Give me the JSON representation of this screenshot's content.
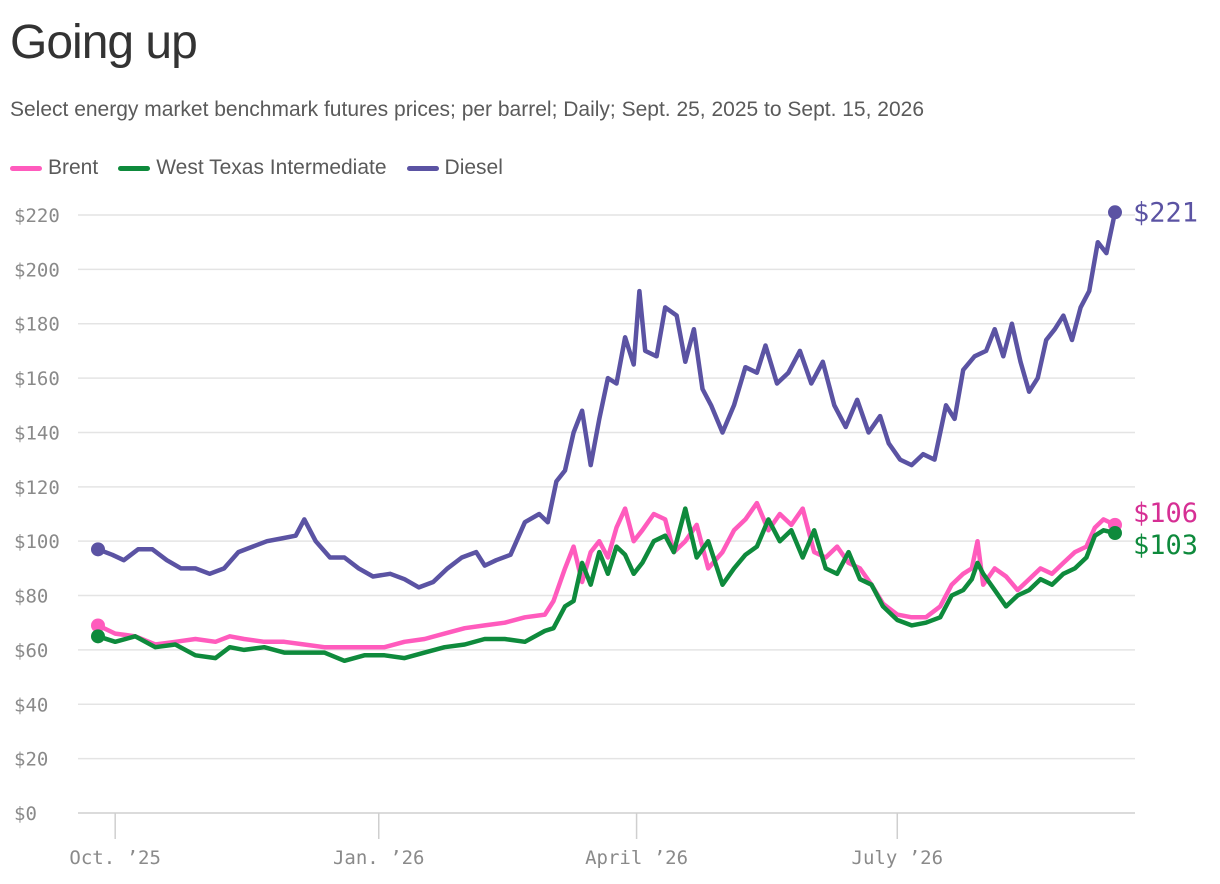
{
  "header": {
    "title": "Going up",
    "subtitle": "Select energy market benchmark futures prices; per barrel; Daily; Sept. 25, 2025 to Sept. 15, 2026"
  },
  "chart_data": {
    "type": "line",
    "title": "Going up",
    "subtitle": "Select energy market benchmark futures prices; per barrel; Daily; Sept. 25, 2025 to Sept. 15, 2026",
    "x_range": [
      "2025-09-25",
      "2026-09-15"
    ],
    "ylim": [
      0,
      220
    ],
    "y_ticks": [
      0,
      20,
      40,
      60,
      80,
      100,
      120,
      140,
      160,
      180,
      200,
      220
    ],
    "y_tick_labels": [
      "$0",
      "$20",
      "$40",
      "$60",
      "$80",
      "$100",
      "$120",
      "$140",
      "$160",
      "$180",
      "$200",
      "$220"
    ],
    "x_ticks": [
      {
        "date": "2025-10-01",
        "label": "Oct. ’25"
      },
      {
        "date": "2026-01-01",
        "label": "Jan. ’26"
      },
      {
        "date": "2026-04-01",
        "label": "April ’26"
      },
      {
        "date": "2026-07-01",
        "label": "July ’26"
      }
    ],
    "grid": true,
    "legend": "top-left",
    "series": [
      {
        "name": "Brent",
        "color": "#ff5bbd",
        "label_color": "#d62f94",
        "end_label": "$106",
        "points": [
          [
            "2025-09-25",
            69
          ],
          [
            "2025-10-01",
            66
          ],
          [
            "2025-10-08",
            65
          ],
          [
            "2025-10-15",
            62
          ],
          [
            "2025-10-22",
            63
          ],
          [
            "2025-10-29",
            64
          ],
          [
            "2025-11-05",
            63
          ],
          [
            "2025-11-10",
            65
          ],
          [
            "2025-11-15",
            64
          ],
          [
            "2025-11-22",
            63
          ],
          [
            "2025-11-29",
            63
          ],
          [
            "2025-12-06",
            62
          ],
          [
            "2025-12-13",
            61
          ],
          [
            "2025-12-20",
            61
          ],
          [
            "2025-12-27",
            61
          ],
          [
            "2026-01-03",
            61
          ],
          [
            "2026-01-10",
            63
          ],
          [
            "2026-01-17",
            64
          ],
          [
            "2026-01-24",
            66
          ],
          [
            "2026-01-31",
            68
          ],
          [
            "2026-02-07",
            69
          ],
          [
            "2026-02-14",
            70
          ],
          [
            "2026-02-21",
            72
          ],
          [
            "2026-02-28",
            73
          ],
          [
            "2026-03-03",
            78
          ],
          [
            "2026-03-07",
            90
          ],
          [
            "2026-03-10",
            98
          ],
          [
            "2026-03-13",
            85
          ],
          [
            "2026-03-16",
            96
          ],
          [
            "2026-03-19",
            100
          ],
          [
            "2026-03-22",
            94
          ],
          [
            "2026-03-25",
            105
          ],
          [
            "2026-03-28",
            112
          ],
          [
            "2026-03-31",
            100
          ],
          [
            "2026-04-03",
            104
          ],
          [
            "2026-04-07",
            110
          ],
          [
            "2026-04-11",
            108
          ],
          [
            "2026-04-14",
            96
          ],
          [
            "2026-04-18",
            100
          ],
          [
            "2026-04-22",
            106
          ],
          [
            "2026-04-26",
            90
          ],
          [
            "2026-05-01",
            96
          ],
          [
            "2026-05-05",
            104
          ],
          [
            "2026-05-09",
            108
          ],
          [
            "2026-05-13",
            114
          ],
          [
            "2026-05-17",
            104
          ],
          [
            "2026-05-21",
            110
          ],
          [
            "2026-05-25",
            106
          ],
          [
            "2026-05-29",
            112
          ],
          [
            "2026-06-02",
            96
          ],
          [
            "2026-06-06",
            94
          ],
          [
            "2026-06-10",
            98
          ],
          [
            "2026-06-14",
            92
          ],
          [
            "2026-06-18",
            90
          ],
          [
            "2026-06-22",
            84
          ],
          [
            "2026-06-26",
            77
          ],
          [
            "2026-07-01",
            73
          ],
          [
            "2026-07-06",
            72
          ],
          [
            "2026-07-11",
            72
          ],
          [
            "2026-07-16",
            76
          ],
          [
            "2026-07-20",
            84
          ],
          [
            "2026-07-24",
            88
          ],
          [
            "2026-07-27",
            90
          ],
          [
            "2026-07-29",
            100
          ],
          [
            "2026-07-31",
            84
          ],
          [
            "2026-08-04",
            90
          ],
          [
            "2026-08-08",
            87
          ],
          [
            "2026-08-12",
            82
          ],
          [
            "2026-08-16",
            86
          ],
          [
            "2026-08-20",
            90
          ],
          [
            "2026-08-24",
            88
          ],
          [
            "2026-08-28",
            92
          ],
          [
            "2026-09-01",
            96
          ],
          [
            "2026-09-05",
            98
          ],
          [
            "2026-09-08",
            105
          ],
          [
            "2026-09-11",
            108
          ],
          [
            "2026-09-15",
            106
          ]
        ]
      },
      {
        "name": "West Texas Intermediate",
        "color": "#0e8a3c",
        "label_color": "#0e8a3c",
        "end_label": "$103",
        "points": [
          [
            "2025-09-25",
            65
          ],
          [
            "2025-10-01",
            63
          ],
          [
            "2025-10-08",
            65
          ],
          [
            "2025-10-15",
            61
          ],
          [
            "2025-10-22",
            62
          ],
          [
            "2025-10-29",
            58
          ],
          [
            "2025-11-05",
            57
          ],
          [
            "2025-11-10",
            61
          ],
          [
            "2025-11-15",
            60
          ],
          [
            "2025-11-22",
            61
          ],
          [
            "2025-11-29",
            59
          ],
          [
            "2025-12-06",
            59
          ],
          [
            "2025-12-13",
            59
          ],
          [
            "2025-12-20",
            56
          ],
          [
            "2025-12-27",
            58
          ],
          [
            "2026-01-03",
            58
          ],
          [
            "2026-01-10",
            57
          ],
          [
            "2026-01-17",
            59
          ],
          [
            "2026-01-24",
            61
          ],
          [
            "2026-01-31",
            62
          ],
          [
            "2026-02-07",
            64
          ],
          [
            "2026-02-14",
            64
          ],
          [
            "2026-02-21",
            63
          ],
          [
            "2026-02-28",
            67
          ],
          [
            "2026-03-03",
            68
          ],
          [
            "2026-03-07",
            76
          ],
          [
            "2026-03-10",
            78
          ],
          [
            "2026-03-13",
            92
          ],
          [
            "2026-03-16",
            84
          ],
          [
            "2026-03-19",
            96
          ],
          [
            "2026-03-22",
            88
          ],
          [
            "2026-03-25",
            98
          ],
          [
            "2026-03-28",
            95
          ],
          [
            "2026-03-31",
            88
          ],
          [
            "2026-04-03",
            92
          ],
          [
            "2026-04-07",
            100
          ],
          [
            "2026-04-11",
            102
          ],
          [
            "2026-04-14",
            96
          ],
          [
            "2026-04-18",
            112
          ],
          [
            "2026-04-22",
            94
          ],
          [
            "2026-04-26",
            100
          ],
          [
            "2026-05-01",
            84
          ],
          [
            "2026-05-05",
            90
          ],
          [
            "2026-05-09",
            95
          ],
          [
            "2026-05-13",
            98
          ],
          [
            "2026-05-17",
            108
          ],
          [
            "2026-05-21",
            100
          ],
          [
            "2026-05-25",
            104
          ],
          [
            "2026-05-29",
            94
          ],
          [
            "2026-06-02",
            104
          ],
          [
            "2026-06-06",
            90
          ],
          [
            "2026-06-10",
            88
          ],
          [
            "2026-06-14",
            96
          ],
          [
            "2026-06-18",
            86
          ],
          [
            "2026-06-22",
            84
          ],
          [
            "2026-06-26",
            76
          ],
          [
            "2026-07-01",
            71
          ],
          [
            "2026-07-06",
            69
          ],
          [
            "2026-07-11",
            70
          ],
          [
            "2026-07-16",
            72
          ],
          [
            "2026-07-20",
            80
          ],
          [
            "2026-07-24",
            82
          ],
          [
            "2026-07-27",
            86
          ],
          [
            "2026-07-29",
            92
          ],
          [
            "2026-07-31",
            88
          ],
          [
            "2026-08-04",
            82
          ],
          [
            "2026-08-08",
            76
          ],
          [
            "2026-08-12",
            80
          ],
          [
            "2026-08-16",
            82
          ],
          [
            "2026-08-20",
            86
          ],
          [
            "2026-08-24",
            84
          ],
          [
            "2026-08-28",
            88
          ],
          [
            "2026-09-01",
            90
          ],
          [
            "2026-09-05",
            94
          ],
          [
            "2026-09-08",
            102
          ],
          [
            "2026-09-11",
            104
          ],
          [
            "2026-09-15",
            103
          ]
        ]
      },
      {
        "name": "Diesel",
        "color": "#5b53a3",
        "label_color": "#5b53a3",
        "end_label": "$221",
        "points": [
          [
            "2025-09-25",
            97
          ],
          [
            "2025-09-30",
            95
          ],
          [
            "2025-10-04",
            93
          ],
          [
            "2025-10-09",
            97
          ],
          [
            "2025-10-14",
            97
          ],
          [
            "2025-10-19",
            93
          ],
          [
            "2025-10-24",
            90
          ],
          [
            "2025-10-29",
            90
          ],
          [
            "2025-11-03",
            88
          ],
          [
            "2025-11-08",
            90
          ],
          [
            "2025-11-13",
            96
          ],
          [
            "2025-11-18",
            98
          ],
          [
            "2025-11-23",
            100
          ],
          [
            "2025-11-28",
            101
          ],
          [
            "2025-12-03",
            102
          ],
          [
            "2025-12-06",
            108
          ],
          [
            "2025-12-10",
            100
          ],
          [
            "2025-12-15",
            94
          ],
          [
            "2025-12-20",
            94
          ],
          [
            "2025-12-25",
            90
          ],
          [
            "2025-12-30",
            87
          ],
          [
            "2026-01-05",
            88
          ],
          [
            "2026-01-10",
            86
          ],
          [
            "2026-01-15",
            83
          ],
          [
            "2026-01-20",
            85
          ],
          [
            "2026-01-25",
            90
          ],
          [
            "2026-01-30",
            94
          ],
          [
            "2026-02-04",
            96
          ],
          [
            "2026-02-07",
            91
          ],
          [
            "2026-02-11",
            93
          ],
          [
            "2026-02-16",
            95
          ],
          [
            "2026-02-21",
            107
          ],
          [
            "2026-02-26",
            110
          ],
          [
            "2026-03-01",
            107
          ],
          [
            "2026-03-04",
            122
          ],
          [
            "2026-03-07",
            126
          ],
          [
            "2026-03-10",
            140
          ],
          [
            "2026-03-13",
            148
          ],
          [
            "2026-03-16",
            128
          ],
          [
            "2026-03-19",
            145
          ],
          [
            "2026-03-22",
            160
          ],
          [
            "2026-03-25",
            158
          ],
          [
            "2026-03-28",
            175
          ],
          [
            "2026-03-31",
            165
          ],
          [
            "2026-04-02",
            192
          ],
          [
            "2026-04-04",
            170
          ],
          [
            "2026-04-08",
            168
          ],
          [
            "2026-04-11",
            186
          ],
          [
            "2026-04-15",
            183
          ],
          [
            "2026-04-18",
            166
          ],
          [
            "2026-04-21",
            178
          ],
          [
            "2026-04-24",
            156
          ],
          [
            "2026-04-27",
            150
          ],
          [
            "2026-05-01",
            140
          ],
          [
            "2026-05-05",
            150
          ],
          [
            "2026-05-09",
            164
          ],
          [
            "2026-05-13",
            162
          ],
          [
            "2026-05-16",
            172
          ],
          [
            "2026-05-20",
            158
          ],
          [
            "2026-05-24",
            162
          ],
          [
            "2026-05-28",
            170
          ],
          [
            "2026-06-01",
            158
          ],
          [
            "2026-06-05",
            166
          ],
          [
            "2026-06-09",
            150
          ],
          [
            "2026-06-13",
            142
          ],
          [
            "2026-06-17",
            152
          ],
          [
            "2026-06-21",
            140
          ],
          [
            "2026-06-25",
            146
          ],
          [
            "2026-06-28",
            136
          ],
          [
            "2026-07-02",
            130
          ],
          [
            "2026-07-06",
            128
          ],
          [
            "2026-07-10",
            132
          ],
          [
            "2026-07-14",
            130
          ],
          [
            "2026-07-18",
            150
          ],
          [
            "2026-07-21",
            145
          ],
          [
            "2026-07-24",
            163
          ],
          [
            "2026-07-28",
            168
          ],
          [
            "2026-08-01",
            170
          ],
          [
            "2026-08-04",
            178
          ],
          [
            "2026-08-07",
            168
          ],
          [
            "2026-08-10",
            180
          ],
          [
            "2026-08-13",
            166
          ],
          [
            "2026-08-16",
            155
          ],
          [
            "2026-08-19",
            160
          ],
          [
            "2026-08-22",
            174
          ],
          [
            "2026-08-25",
            178
          ],
          [
            "2026-08-28",
            183
          ],
          [
            "2026-08-31",
            174
          ],
          [
            "2026-09-03",
            186
          ],
          [
            "2026-09-06",
            192
          ],
          [
            "2026-09-09",
            210
          ],
          [
            "2026-09-12",
            206
          ],
          [
            "2026-09-15",
            221
          ]
        ]
      }
    ]
  }
}
